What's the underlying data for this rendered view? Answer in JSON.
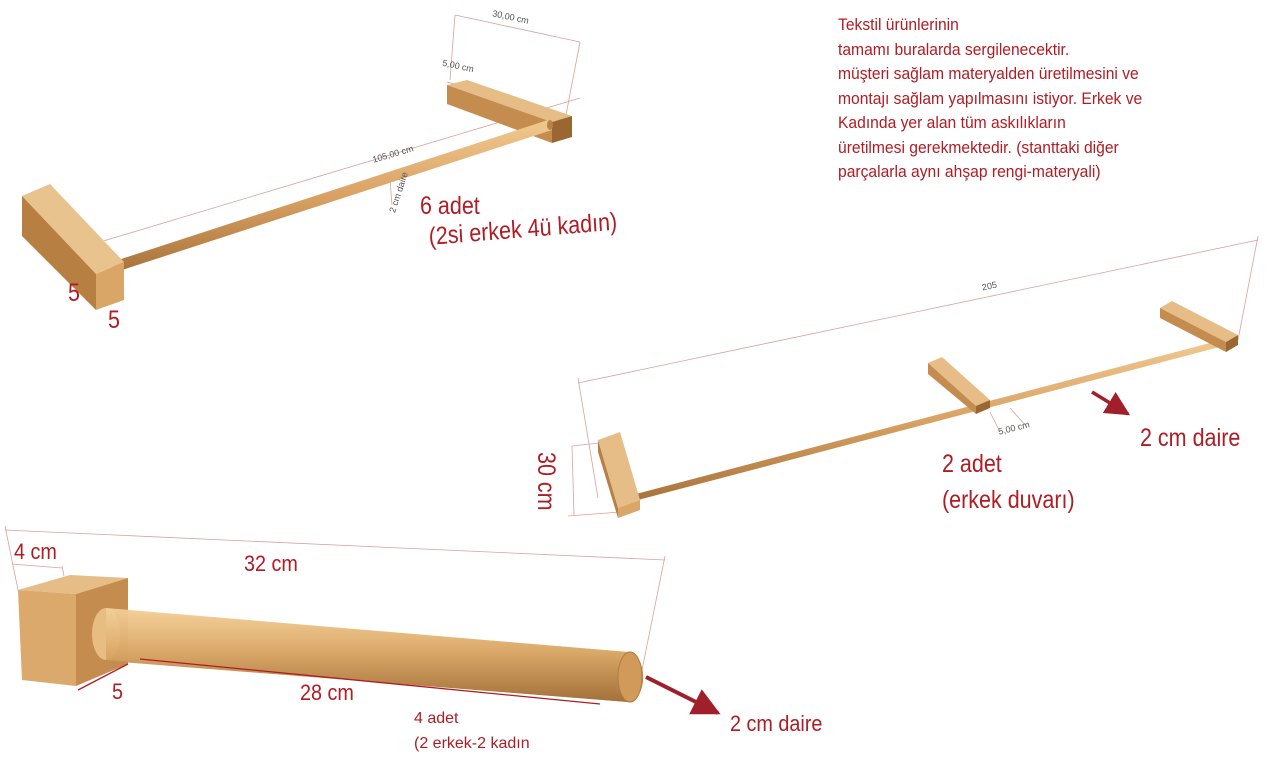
{
  "note_lines": [
    "Tekstil ürünlerinin",
    "tamamı buralarda sergilenecektir.",
    "müşteri sağlam materyalden üretilmesini ve",
    "montajı sağlam yapılmasını istiyor. Erkek ve",
    "Kadında yer alan tüm askılıkların",
    "üretilmesi gerekmektedir. (stanttaki diğer",
    "parçalarla aynı ahşap rengi-materyali)"
  ],
  "rack1": {
    "dim_width": "30,00 cm",
    "dim_block": "5,00 cm",
    "dim_length": "105,00 cm",
    "dim_rod": "2 cm daire",
    "block_h": "5",
    "block_w": "5",
    "qty": "6 adet",
    "qty_detail": "(2si erkek 4ü kadın)"
  },
  "rack2": {
    "dim_length": "205",
    "dim_block": "5,00 cm",
    "dim_height": "30 cm",
    "rod_label": "2 cm daire",
    "qty": "2 adet",
    "qty_detail": "(erkek duvarı)"
  },
  "rack3": {
    "dim_block": "4 cm",
    "dim_total": "32 cm",
    "dim_side": "5",
    "dim_rod": "28 cm",
    "qty": "4 adet",
    "qty_detail": "(2 erkek-2 kadın",
    "rod_label": "2 cm daire"
  },
  "colors": {
    "label": "#b01c24",
    "wood_light": "#e3b57a",
    "wood_mid": "#c8904f",
    "wood_dark": "#9c6a35",
    "dimension_line": "#c98a8a"
  }
}
